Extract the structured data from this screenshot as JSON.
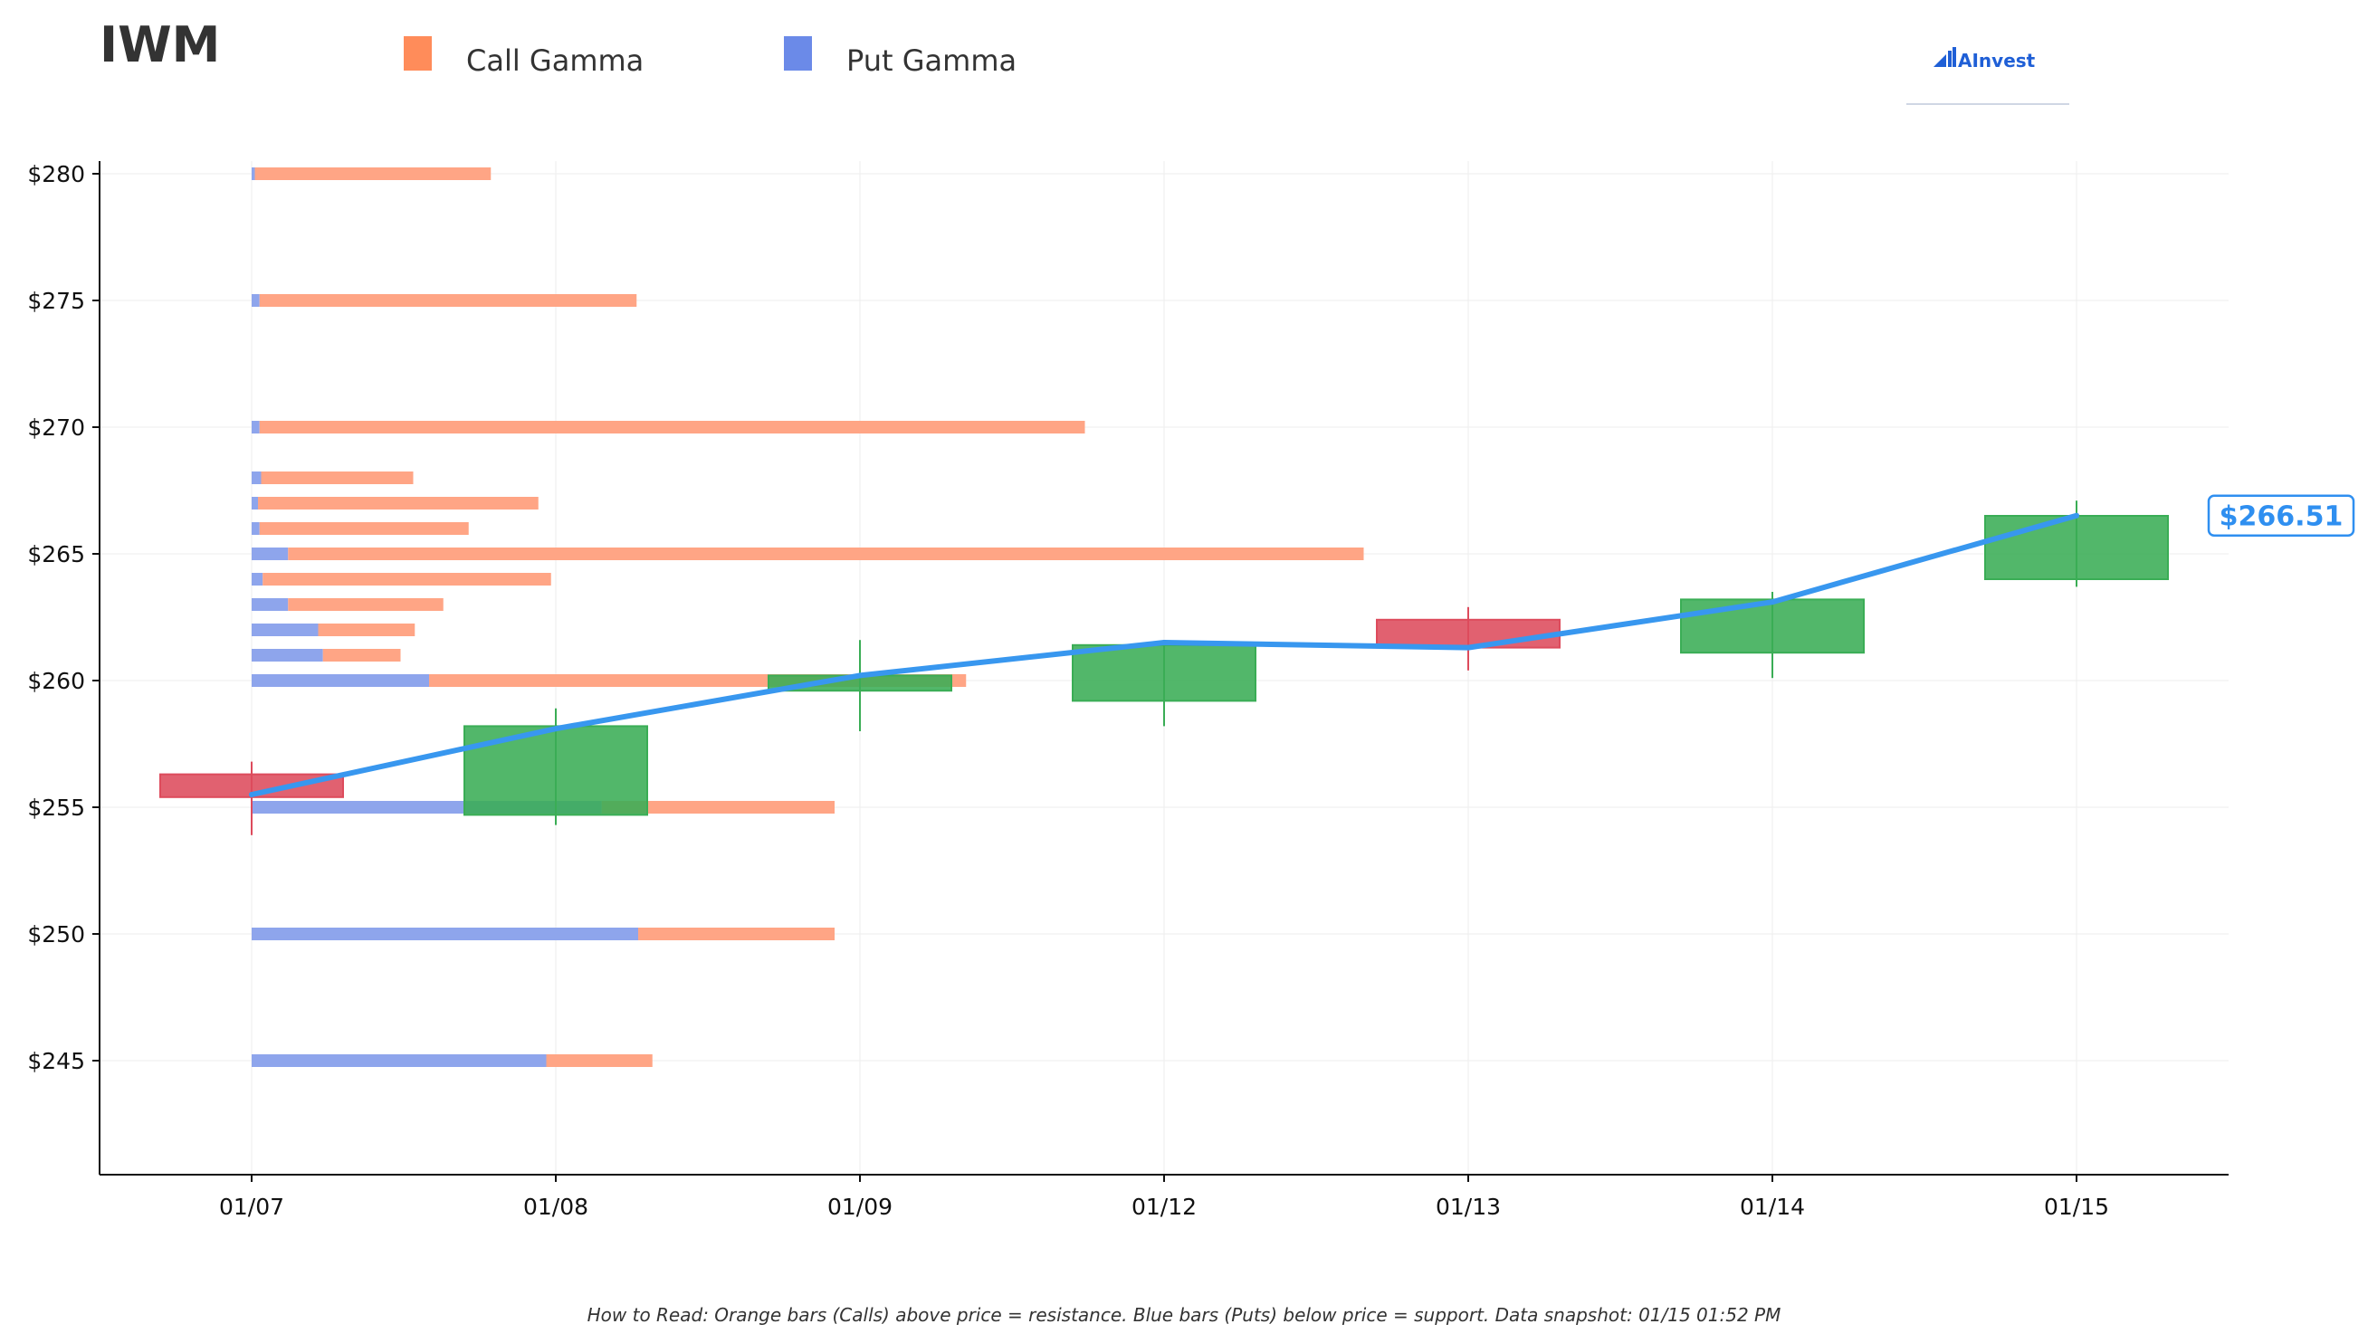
{
  "title": "IWM",
  "legend": [
    {
      "label": "Call Gamma",
      "color": "#ff8c5a"
    },
    {
      "label": "Put Gamma",
      "color": "#6b8ae8"
    }
  ],
  "brand": {
    "name": "AInvest",
    "color": "#1f5fd6"
  },
  "last_price_label": "$266.51",
  "footnote": "How to Read: Orange bars (Calls) above price = resistance. Blue bars (Puts) below price = support. Data snapshot: 01/15 01:52 PM",
  "colors": {
    "call": "#ffa585",
    "put": "#8ea5ec",
    "up": "#3aad55",
    "down": "#dd4b5c",
    "price_line": "#3897ef"
  },
  "chart_data": {
    "type": "candlestick",
    "title": "IWM",
    "ylim": [
      240.5,
      280.5
    ],
    "y_ticks": [
      245,
      250,
      255,
      260,
      265,
      270,
      275,
      280
    ],
    "y_tick_labels": [
      "$245",
      "$250",
      "$255",
      "$260",
      "$265",
      "$270",
      "$275",
      "$280"
    ],
    "categories": [
      "01/07",
      "01/08",
      "01/09",
      "01/12",
      "01/13",
      "01/14",
      "01/15"
    ],
    "candles": [
      {
        "date": "01/07",
        "open": 256.3,
        "close": 255.4,
        "high": 256.8,
        "low": 253.9
      },
      {
        "date": "01/08",
        "open": 254.7,
        "close": 258.2,
        "high": 258.9,
        "low": 254.3
      },
      {
        "date": "01/09",
        "open": 259.6,
        "close": 260.2,
        "high": 261.6,
        "low": 258.0
      },
      {
        "date": "01/12",
        "open": 259.2,
        "close": 261.4,
        "high": 261.5,
        "low": 258.2
      },
      {
        "date": "01/13",
        "open": 262.4,
        "close": 261.3,
        "high": 262.9,
        "low": 260.4
      },
      {
        "date": "01/14",
        "open": 261.1,
        "close": 263.2,
        "high": 263.5,
        "low": 260.1
      },
      {
        "date": "01/15",
        "open": 264.0,
        "close": 266.5,
        "high": 267.1,
        "low": 263.7
      }
    ],
    "price_line": {
      "name": "Price",
      "values": [
        255.5,
        258.1,
        260.2,
        261.5,
        261.3,
        263.1,
        266.51
      ]
    },
    "gamma_bars": [
      {
        "strike": 280,
        "put": 0.02,
        "call": 1.49
      },
      {
        "strike": 275,
        "put": 0.05,
        "call": 2.38
      },
      {
        "strike": 270,
        "put": 0.05,
        "call": 5.21
      },
      {
        "strike": 268,
        "put": 0.06,
        "call": 0.96
      },
      {
        "strike": 267,
        "put": 0.04,
        "call": 1.77
      },
      {
        "strike": 266,
        "put": 0.05,
        "call": 1.32
      },
      {
        "strike": 265,
        "put": 0.23,
        "call": 6.79
      },
      {
        "strike": 264,
        "put": 0.07,
        "call": 1.82
      },
      {
        "strike": 263,
        "put": 0.23,
        "call": 0.98
      },
      {
        "strike": 262,
        "put": 0.42,
        "call": 0.61
      },
      {
        "strike": 261,
        "put": 0.45,
        "call": 0.49
      },
      {
        "strike": 260,
        "put": 1.12,
        "call": 3.39
      },
      {
        "strike": 255,
        "put": 2.21,
        "call": 1.47
      },
      {
        "strike": 250,
        "put": 2.44,
        "call": 1.24
      },
      {
        "strike": 245,
        "put": 1.86,
        "call": 0.67
      }
    ]
  }
}
